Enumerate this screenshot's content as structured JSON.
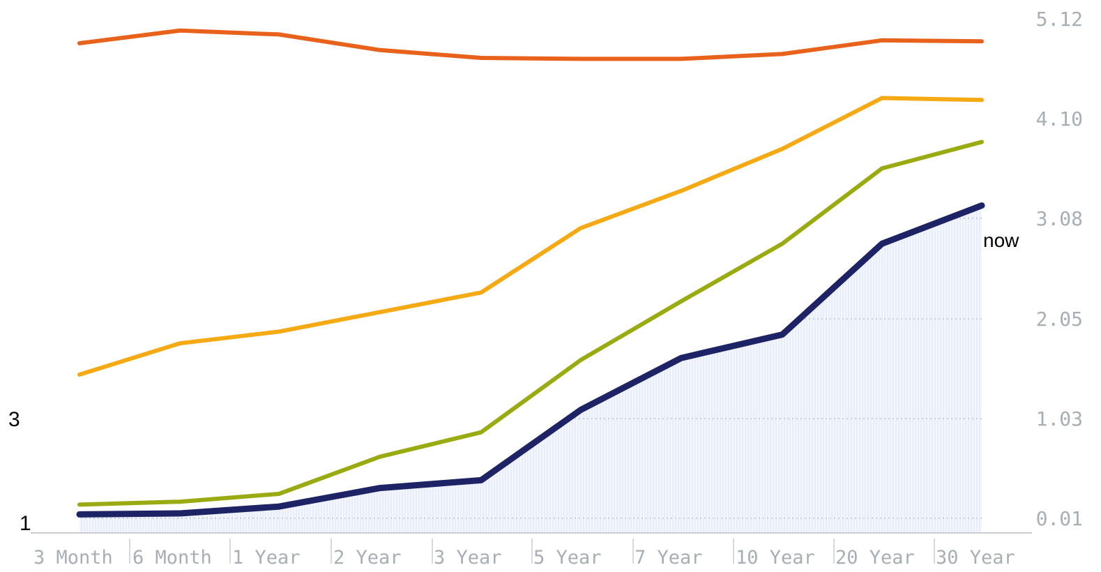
{
  "chart_data": {
    "type": "line",
    "title": "",
    "xlabel": "",
    "ylabel": "",
    "categories": [
      "3 Month",
      "6 Month",
      "1 Year",
      "2 Year",
      "3 Year",
      "5 Year",
      "7 Year",
      "10 Year",
      "20 Year",
      "30 Year"
    ],
    "y_ticks": [
      "0.01",
      "1.03",
      "2.05",
      "3.08",
      "4.10",
      "5.12"
    ],
    "ylim": [
      0.01,
      5.12
    ],
    "y_axis_position": "right",
    "grid": "horizontal dotted, within shaded area",
    "series": [
      {
        "color": "#e8621c",
        "values": [
          4.87,
          5.0,
          4.96,
          4.8,
          4.72,
          4.71,
          4.71,
          4.76,
          4.9,
          4.89
        ]
      },
      {
        "color": "#f5aa14",
        "values": [
          1.48,
          1.8,
          1.92,
          2.12,
          2.32,
          2.98,
          3.36,
          3.79,
          4.31,
          4.29
        ]
      },
      {
        "color": "#9aab12",
        "values": [
          0.15,
          0.18,
          0.26,
          0.64,
          0.89,
          1.63,
          2.23,
          2.82,
          3.59,
          3.86
        ]
      },
      {
        "color": "#1e2366",
        "values": [
          0.05,
          0.06,
          0.13,
          0.32,
          0.4,
          1.12,
          1.65,
          1.89,
          2.82,
          3.21
        ]
      }
    ],
    "shaded_series_index": 3,
    "shade_color": "#e4eaf6",
    "annotations": [
      {
        "text": "now",
        "series_index": 3,
        "category": "30 Year"
      },
      {
        "text": "3",
        "position": "left"
      },
      {
        "text": "1",
        "position": "left"
      }
    ]
  }
}
